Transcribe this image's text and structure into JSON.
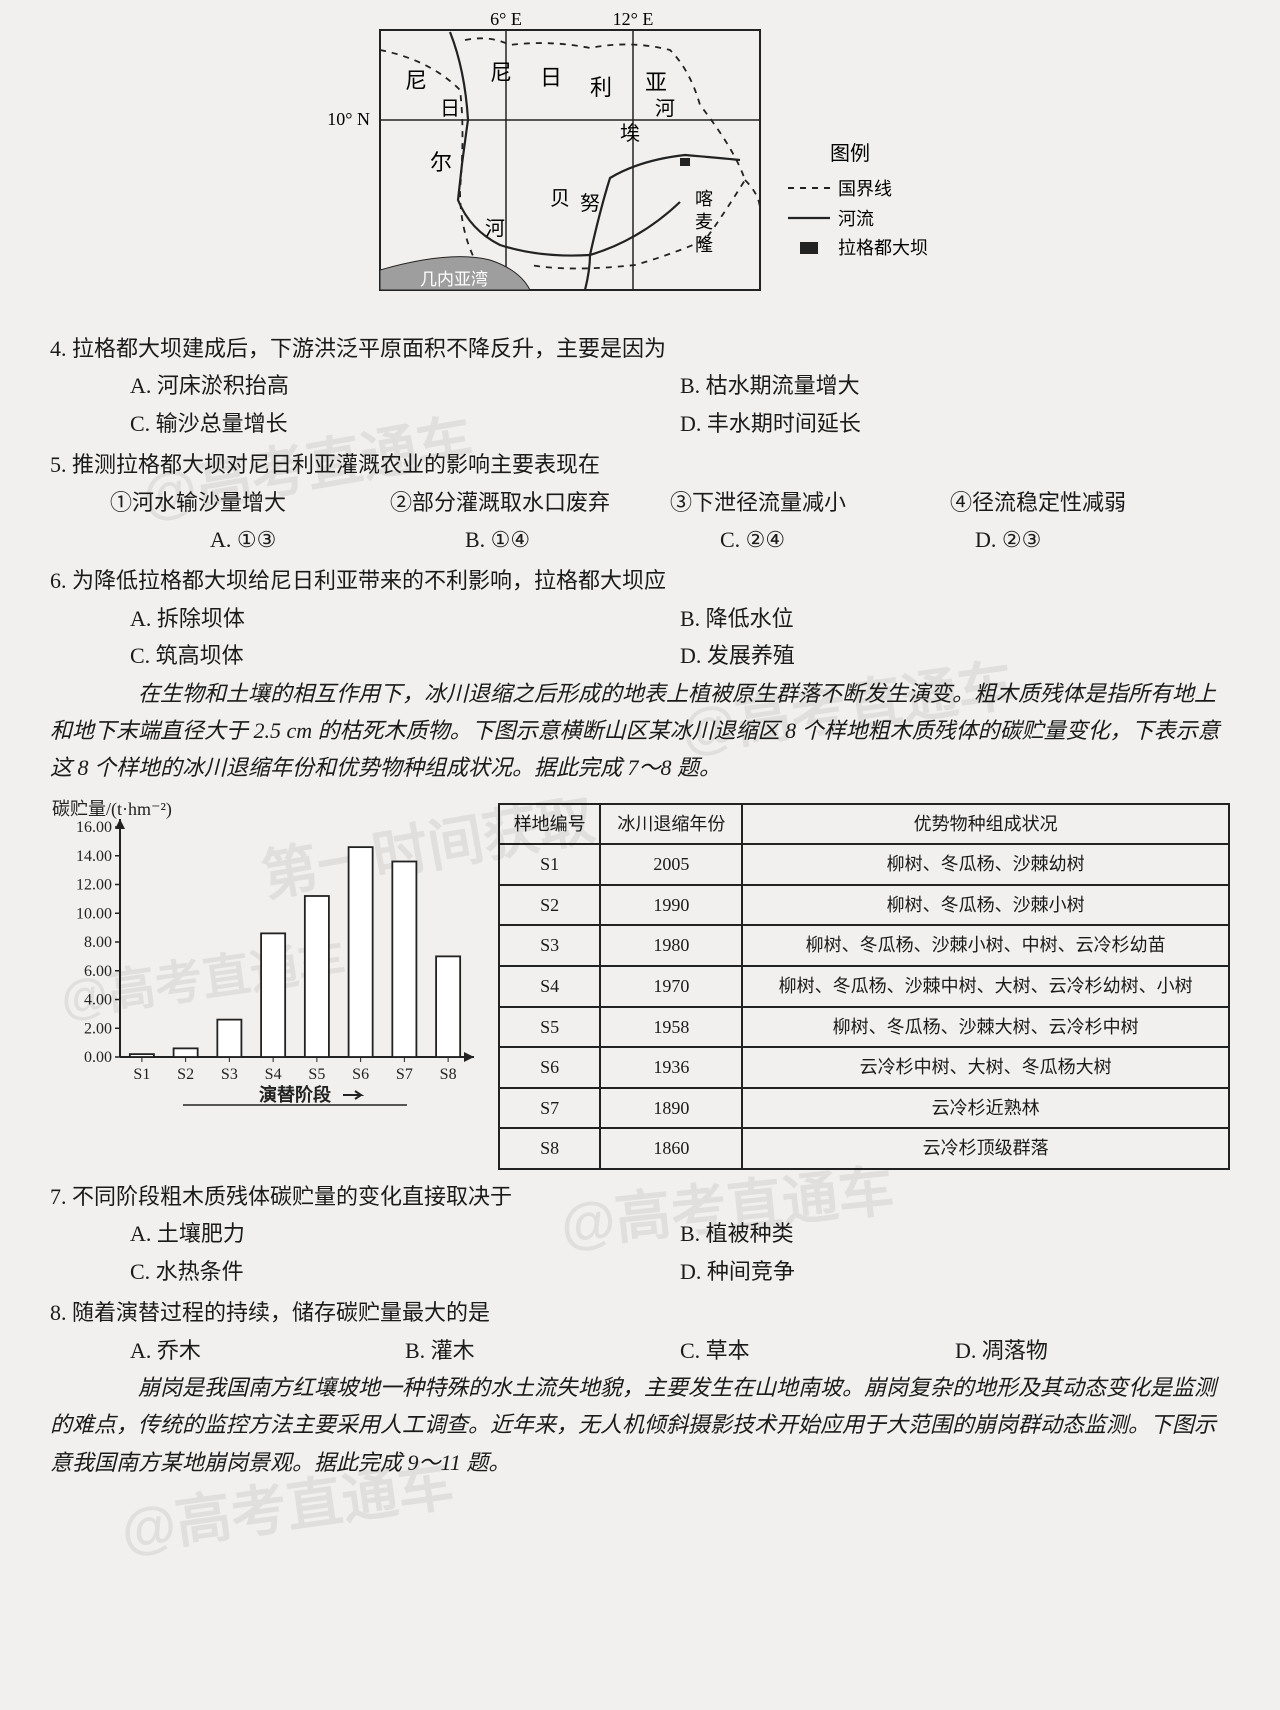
{
  "map": {
    "lon_labels": [
      "6° E",
      "12° E"
    ],
    "lat_label": "10° N",
    "countries": {
      "niger_left": "尼",
      "nigeria_n": "尼",
      "nigeria_i": "日",
      "nigeria_l": "利",
      "nigeria_y": "亚",
      "ri": "日",
      "er": "尔",
      "benue": "贝努埃",
      "river_he": "河",
      "river_he2": "河",
      "kamailong_top": "喀",
      "kamailong_mid": "麦",
      "kamailong_bot": "隆",
      "gulf": "几内亚湾"
    },
    "legend": {
      "title": "图例",
      "boundary": "国界线",
      "river": "河流",
      "dam": "拉格都大坝"
    }
  },
  "q4": {
    "stem": "4. 拉格都大坝建成后，下游洪泛平原面积不降反升，主要是因为",
    "opts": {
      "A": "A. 河床淤积抬高",
      "B": "B. 枯水期流量增大",
      "C": "C. 输沙总量增长",
      "D": "D. 丰水期时间延长"
    }
  },
  "q5": {
    "stem": "5. 推测拉格都大坝对尼日利亚灌溉农业的影响主要表现在",
    "c1": "①河水输沙量增大",
    "c2": "②部分灌溉取水口废弃",
    "c3": "③下泄径流量减小",
    "c4": "④径流稳定性减弱",
    "opts": {
      "A": "A. ①③",
      "B": "B. ①④",
      "C": "C. ②④",
      "D": "D. ②③"
    }
  },
  "q6": {
    "stem": "6. 为降低拉格都大坝给尼日利亚带来的不利影响，拉格都大坝应",
    "opts": {
      "A": "A. 拆除坝体",
      "B": "B. 降低水位",
      "C": "C. 筑高坝体",
      "D": "D. 发展养殖"
    }
  },
  "passage78": "　　在生物和土壤的相互作用下，冰川退缩之后形成的地表上植被原生群落不断发生演变。粗木质残体是指所有地上和地下末端直径大于 2.5 cm 的枯死木质物。下图示意横断山区某冰川退缩区 8 个样地粗木质残体的碳贮量变化，下表示意这 8 个样地的冰川退缩年份和优势物种组成状况。据此完成 7～8 题。",
  "chart": {
    "ylabel": "碳贮量/(t·hm⁻²)",
    "ylim": [
      0,
      16
    ],
    "ytick_step": 2,
    "categories": [
      "S1",
      "S2",
      "S3",
      "S4",
      "S5",
      "S6",
      "S7",
      "S8"
    ],
    "values": [
      0.2,
      0.6,
      2.6,
      8.6,
      11.2,
      14.6,
      13.6,
      7.0
    ],
    "xlabel": "演替阶段",
    "bar_fill": "#ffffff",
    "bar_stroke": "#222222",
    "bg": "#f2f0ee",
    "axis_color": "#222222",
    "label_fontsize": 18,
    "tick_fontsize": 16
  },
  "table": {
    "head": {
      "c1": "样地编号",
      "c2": "冰川退缩年份",
      "c3": "优势物种组成状况"
    },
    "rows": [
      {
        "id": "S1",
        "year": "2005",
        "species": "柳树、冬瓜杨、沙棘幼树"
      },
      {
        "id": "S2",
        "year": "1990",
        "species": "柳树、冬瓜杨、沙棘小树"
      },
      {
        "id": "S3",
        "year": "1980",
        "species": "柳树、冬瓜杨、沙棘小树、中树、云冷杉幼苗"
      },
      {
        "id": "S4",
        "year": "1970",
        "species": "柳树、冬瓜杨、沙棘中树、大树、云冷杉幼树、小树"
      },
      {
        "id": "S5",
        "year": "1958",
        "species": "柳树、冬瓜杨、沙棘大树、云冷杉中树"
      },
      {
        "id": "S6",
        "year": "1936",
        "species": "云冷杉中树、大树、冬瓜杨大树"
      },
      {
        "id": "S7",
        "year": "1890",
        "species": "云冷杉近熟林"
      },
      {
        "id": "S8",
        "year": "1860",
        "species": "云冷杉顶级群落"
      }
    ]
  },
  "q7": {
    "stem": "7. 不同阶段粗木质残体碳贮量的变化直接取决于",
    "opts": {
      "A": "A. 土壤肥力",
      "B": "B. 植被种类",
      "C": "C. 水热条件",
      "D": "D. 种间竞争"
    }
  },
  "q8": {
    "stem": "8. 随着演替过程的持续，储存碳贮量最大的是",
    "opts": {
      "A": "A. 乔木",
      "B": "B. 灌木",
      "C": "C. 草本",
      "D": "D. 凋落物"
    }
  },
  "passage911": "　　崩岗是我国南方红壤坡地一种特殊的水土流失地貌，主要发生在山地南坡。崩岗复杂的地形及其动态变化是监测的难点，传统的监控方法主要采用人工调查。近年来，无人机倾斜摄影技术开始应用于大范围的崩岗群动态监测。下图示意我国南方某地崩岗景观。据此完成 9～11 题。",
  "watermarks": {
    "wm1": "@高考直通车",
    "wm2": "@高考直通车",
    "wm3": "第一时间获取",
    "wm4": "@高考直通车",
    "wm5": "@高考直通车",
    "wm6": "@高考直通车"
  }
}
